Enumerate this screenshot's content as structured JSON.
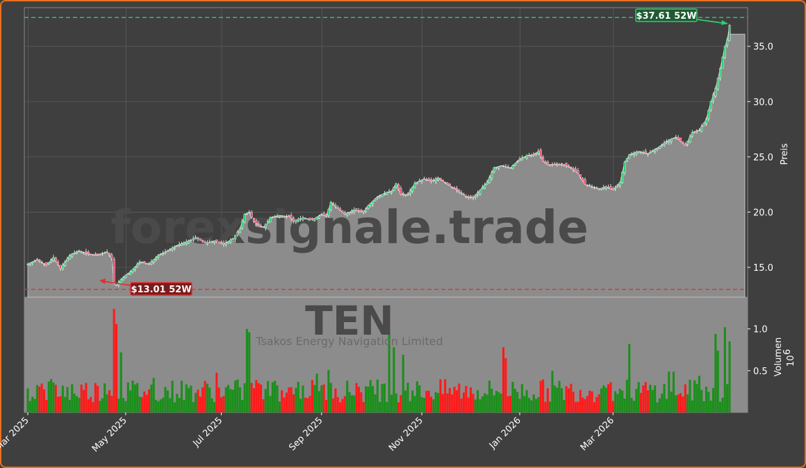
{
  "chart_data": {
    "type": "candlestick",
    "watermark": "forexsignale.trade",
    "ticker": "TEN",
    "company": "Tsakos Energy Navigation Limited",
    "price_axis": {
      "label": "Preis",
      "ticks": [
        "15.0",
        "20.0",
        "25.0",
        "30.0",
        "35.0"
      ],
      "ylim": [
        12.3,
        38.5
      ]
    },
    "volume_axis": {
      "label": "Volumen",
      "multiplier": "10",
      "exponent": "6",
      "ticks": [
        "0.5",
        "1.0"
      ],
      "ylim": [
        0,
        1.38
      ]
    },
    "x_ticks": [
      "Mar 2025",
      "May 2025",
      "Jul 2025",
      "Sep 2025",
      "Nov 2025",
      "Jan 2026",
      "Mar 2026"
    ],
    "annotations": {
      "high": {
        "label": "$37.61 52W",
        "value": 37.61
      },
      "low": {
        "label": "$13.01 52W",
        "value": 13.01
      }
    },
    "price_keypoints": [
      [
        0,
        15.3
      ],
      [
        4,
        15.7
      ],
      [
        8,
        15.2
      ],
      [
        11,
        15.9
      ],
      [
        14,
        14.9
      ],
      [
        18,
        16.1
      ],
      [
        22,
        16.5
      ],
      [
        26,
        16.2
      ],
      [
        30,
        16.1
      ],
      [
        34,
        16.4
      ],
      [
        36,
        15.8
      ],
      [
        37,
        13.5
      ],
      [
        38,
        13.4
      ],
      [
        40,
        13.9
      ],
      [
        42,
        14.3
      ],
      [
        44,
        14.6
      ],
      [
        48,
        15.5
      ],
      [
        52,
        15.3
      ],
      [
        56,
        16.1
      ],
      [
        60,
        16.5
      ],
      [
        64,
        17.0
      ],
      [
        68,
        17.3
      ],
      [
        72,
        17.7
      ],
      [
        76,
        17.2
      ],
      [
        80,
        17.4
      ],
      [
        84,
        17.1
      ],
      [
        88,
        17.6
      ],
      [
        91,
        18.5
      ],
      [
        93,
        19.8
      ],
      [
        95,
        20.0
      ],
      [
        97,
        19.1
      ],
      [
        101,
        18.6
      ],
      [
        104,
        19.5
      ],
      [
        108,
        19.7
      ],
      [
        112,
        19.6
      ],
      [
        114,
        19.2
      ],
      [
        118,
        19.5
      ],
      [
        122,
        19.3
      ],
      [
        126,
        19.8
      ],
      [
        128,
        19.6
      ],
      [
        130,
        20.9
      ],
      [
        133,
        20.3
      ],
      [
        136,
        19.8
      ],
      [
        140,
        20.2
      ],
      [
        144,
        20.0
      ],
      [
        146,
        20.6
      ],
      [
        150,
        21.4
      ],
      [
        154,
        21.8
      ],
      [
        156,
        21.9
      ],
      [
        158,
        22.6
      ],
      [
        160,
        21.6
      ],
      [
        163,
        21.6
      ],
      [
        166,
        22.6
      ],
      [
        170,
        23.0
      ],
      [
        173,
        22.8
      ],
      [
        176,
        23.1
      ],
      [
        180,
        22.5
      ],
      [
        184,
        22.0
      ],
      [
        188,
        21.4
      ],
      [
        191,
        21.3
      ],
      [
        194,
        22.0
      ],
      [
        197,
        22.7
      ],
      [
        200,
        24.0
      ],
      [
        203,
        24.2
      ],
      [
        207,
        24.0
      ],
      [
        211,
        24.8
      ],
      [
        214,
        25.1
      ],
      [
        217,
        25.2
      ],
      [
        219,
        25.5
      ],
      [
        221,
        24.6
      ],
      [
        223,
        24.3
      ],
      [
        226,
        24.3
      ],
      [
        230,
        24.3
      ],
      [
        233,
        24.0
      ],
      [
        236,
        23.5
      ],
      [
        239,
        22.5
      ],
      [
        242,
        22.3
      ],
      [
        245,
        22.1
      ],
      [
        248,
        22.3
      ],
      [
        251,
        22.0
      ],
      [
        254,
        22.7
      ],
      [
        256,
        24.5
      ],
      [
        258,
        25.2
      ],
      [
        262,
        25.5
      ],
      [
        266,
        25.3
      ],
      [
        270,
        25.8
      ],
      [
        274,
        26.4
      ],
      [
        278,
        26.8
      ],
      [
        282,
        26.0
      ],
      [
        285,
        27.2
      ],
      [
        288,
        27.4
      ],
      [
        291,
        28.4
      ],
      [
        293,
        30.0
      ],
      [
        295,
        31.2
      ],
      [
        297,
        33.0
      ],
      [
        299,
        35.0
      ],
      [
        300,
        35.6
      ],
      [
        301,
        36.9
      ]
    ],
    "volume_peaks": [
      [
        37,
        1.24
      ],
      [
        38,
        1.06
      ],
      [
        40,
        0.72
      ],
      [
        94,
        1.0
      ],
      [
        95,
        0.96
      ],
      [
        155,
        0.99
      ],
      [
        157,
        0.78
      ],
      [
        161,
        0.69
      ],
      [
        204,
        0.78
      ],
      [
        205,
        0.65
      ],
      [
        258,
        0.82
      ],
      [
        295,
        0.94
      ],
      [
        296,
        0.74
      ],
      [
        299,
        1.02
      ],
      [
        301,
        0.85
      ]
    ],
    "colors": {
      "up": "#1a8f1a",
      "down": "#ff1a1a",
      "area": "#8c8c8c",
      "panel": "#3f3f3f",
      "high_line": "#2ecc71",
      "low_line": "#e03030"
    }
  }
}
